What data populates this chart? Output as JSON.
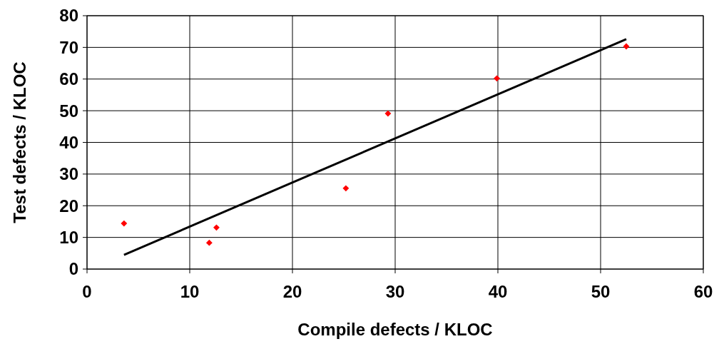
{
  "chart_data": {
    "type": "scatter",
    "xlabel": "Compile defects / KLOC",
    "ylabel": "Test defects / KLOC",
    "xlim": [
      0,
      60
    ],
    "xticks": [
      0,
      10,
      20,
      30,
      40,
      50,
      60
    ],
    "ylim": [
      0,
      80
    ],
    "yticks": [
      0,
      10,
      20,
      30,
      40,
      50,
      60,
      70,
      80
    ],
    "grid": true,
    "series": [
      {
        "color": "#ff0000",
        "marker": "diamond",
        "x": [
          3.6,
          11.9,
          12.6,
          25.2,
          29.3,
          39.9,
          52.5
        ],
        "values": [
          14.4,
          8.3,
          13.1,
          25.5,
          49.1,
          60.2,
          70.3
        ]
      },
      {
        "type": "line",
        "color": "#000000",
        "marker": "none",
        "line_style": "solid",
        "x": [
          3.6,
          52.5
        ],
        "values": [
          4.5,
          72.6
        ]
      }
    ]
  }
}
